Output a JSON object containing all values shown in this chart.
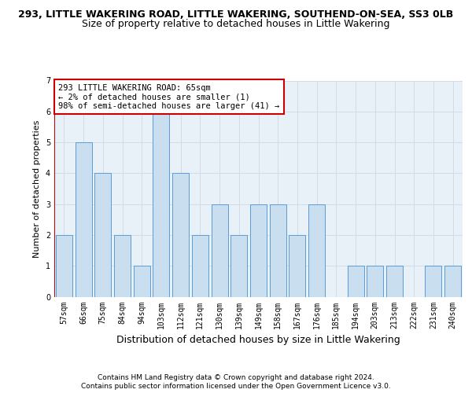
{
  "title": "293, LITTLE WAKERING ROAD, LITTLE WAKERING, SOUTHEND-ON-SEA, SS3 0LB",
  "subtitle": "Size of property relative to detached houses in Little Wakering",
  "xlabel": "Distribution of detached houses by size in Little Wakering",
  "ylabel": "Number of detached properties",
  "footnote1": "Contains HM Land Registry data © Crown copyright and database right 2024.",
  "footnote2": "Contains public sector information licensed under the Open Government Licence v3.0.",
  "categories": [
    "57sqm",
    "66sqm",
    "75sqm",
    "84sqm",
    "94sqm",
    "103sqm",
    "112sqm",
    "121sqm",
    "130sqm",
    "139sqm",
    "149sqm",
    "158sqm",
    "167sqm",
    "176sqm",
    "185sqm",
    "194sqm",
    "203sqm",
    "213sqm",
    "222sqm",
    "231sqm",
    "240sqm"
  ],
  "values": [
    2,
    5,
    4,
    2,
    1,
    6,
    4,
    2,
    3,
    2,
    3,
    3,
    2,
    3,
    0,
    1,
    1,
    1,
    0,
    1,
    1
  ],
  "bar_color": "#c9dff0",
  "bar_edge_color": "#5b9bd5",
  "highlight_line_color": "#cc0000",
  "annotation_text": "293 LITTLE WAKERING ROAD: 65sqm\n← 2% of detached houses are smaller (1)\n98% of semi-detached houses are larger (41) →",
  "annotation_box_color": "#ffffff",
  "annotation_box_edge": "#cc0000",
  "ylim": [
    0,
    7
  ],
  "yticks": [
    0,
    1,
    2,
    3,
    4,
    5,
    6,
    7
  ],
  "grid_color": "#d0d8e4",
  "bg_color": "#e8f0f8",
  "title_fontsize": 9,
  "subtitle_fontsize": 9,
  "xlabel_fontsize": 9,
  "ylabel_fontsize": 8,
  "tick_fontsize": 7,
  "annotation_fontsize": 7.5,
  "footnote_fontsize": 6.5
}
